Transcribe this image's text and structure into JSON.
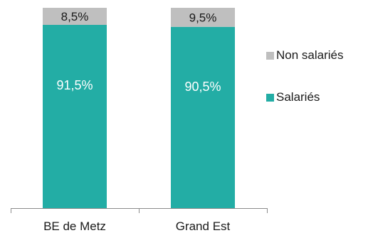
{
  "chart_data": {
    "type": "bar",
    "stacked": true,
    "percent": true,
    "categories": [
      "BE de Metz",
      "Grand Est"
    ],
    "series": [
      {
        "name": "Salariés",
        "values": [
          91.5,
          90.5
        ],
        "labels": [
          "91,5%",
          "90,5%"
        ],
        "color": "#23ada5"
      },
      {
        "name": "Non salariés",
        "values": [
          8.5,
          9.5
        ],
        "labels": [
          "8,5%",
          "9,5%"
        ],
        "color": "#bfbfbf"
      }
    ],
    "title": "",
    "xlabel": "",
    "ylabel": "",
    "ylim": [
      0,
      100
    ],
    "grid": false,
    "legend_position": "right"
  }
}
